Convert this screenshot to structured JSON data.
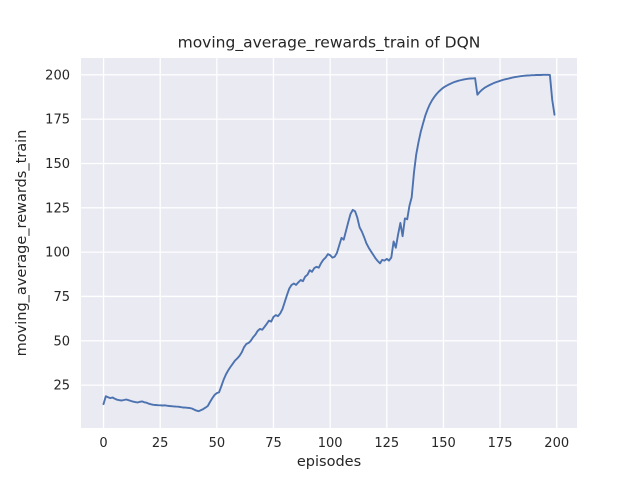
{
  "chart_data": {
    "type": "line",
    "title": "moving_average_rewards_train of DQN",
    "xlabel": "episodes",
    "ylabel": "moving_average_rewards_train",
    "x_ticks": [
      0,
      25,
      50,
      75,
      100,
      125,
      150,
      175,
      200
    ],
    "y_ticks": [
      25,
      50,
      75,
      100,
      125,
      150,
      175,
      200
    ],
    "x_start": 0,
    "x_step": 1,
    "margin_frac": 0.05,
    "grid": true,
    "legend": "none",
    "plot_bg_color": "#EAEAF2",
    "grid_color": "#FFFFFF",
    "text_color": "#262626",
    "figure_bg_color": "#FFFFFF",
    "series": [
      {
        "name": "moving_average_rewards_train",
        "color": "#4C72B0",
        "values": [
          14.3,
          18.7,
          18.2,
          17.7,
          18.0,
          17.3,
          16.8,
          16.5,
          16.3,
          16.6,
          16.9,
          16.5,
          16.1,
          15.7,
          15.4,
          15.2,
          15.6,
          15.8,
          15.3,
          15.1,
          14.5,
          14.2,
          13.9,
          13.8,
          13.7,
          13.6,
          13.5,
          13.6,
          13.4,
          13.2,
          13.1,
          13.0,
          12.9,
          12.8,
          12.6,
          12.4,
          12.3,
          12.2,
          12.1,
          11.8,
          11.2,
          10.6,
          10.3,
          10.9,
          11.5,
          12.3,
          13.2,
          15.5,
          17.6,
          19.5,
          20.5,
          21.0,
          24.5,
          28.0,
          31.0,
          33.3,
          35.2,
          37.0,
          38.8,
          40.0,
          41.5,
          43.5,
          46.3,
          48.2,
          48.8,
          50.0,
          52.0,
          53.5,
          55.5,
          56.7,
          56.2,
          57.8,
          59.5,
          61.4,
          60.8,
          63.5,
          64.5,
          63.9,
          65.5,
          68.0,
          72.0,
          76.0,
          79.5,
          81.5,
          82.3,
          81.5,
          83.0,
          84.3,
          83.6,
          86.2,
          87.3,
          89.8,
          88.9,
          91.0,
          91.7,
          91.2,
          93.8,
          95.7,
          96.9,
          98.9,
          98.3,
          96.9,
          97.4,
          99.5,
          103.8,
          108.0,
          107.0,
          112.0,
          117.0,
          121.5,
          123.8,
          123.0,
          119.5,
          114.0,
          111.5,
          108.5,
          105.0,
          102.5,
          100.5,
          98.5,
          96.5,
          95.0,
          93.7,
          95.6,
          95.2,
          96.2,
          95.2,
          97.0,
          106.0,
          102.5,
          110.0,
          116.5,
          109.0,
          119.0,
          118.5,
          126.0,
          131.0,
          145.0,
          155.0,
          162.0,
          168.0,
          172.5,
          177.0,
          180.5,
          183.3,
          185.7,
          187.6,
          189.2,
          190.6,
          191.8,
          192.8,
          193.6,
          194.3,
          194.9,
          195.5,
          196.0,
          196.4,
          196.8,
          197.1,
          197.4,
          197.6,
          197.8,
          197.9,
          198.0,
          198.1,
          188.8,
          190.3,
          191.5,
          192.5,
          193.3,
          194.0,
          194.6,
          195.2,
          195.7,
          196.2,
          196.6,
          197.0,
          197.4,
          197.7,
          198.0,
          198.3,
          198.6,
          198.8,
          199.0,
          199.2,
          199.4,
          199.5,
          199.6,
          199.7,
          199.8,
          199.8,
          199.9,
          199.9,
          199.9,
          200.0,
          200.0,
          200.0,
          199.9,
          186.0,
          177.5
        ]
      }
    ]
  }
}
